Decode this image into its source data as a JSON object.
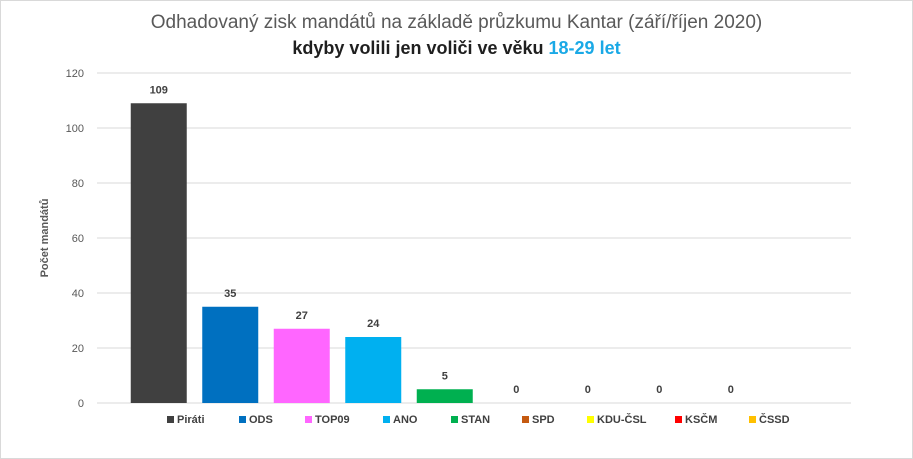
{
  "chart_data": {
    "type": "bar",
    "title": "Odhadovaný zisk mandátů na základě průzkumu Kantar (září/říjen  2020)",
    "subtitle_main": "kdyby volili jen voliči ve věku ",
    "subtitle_highlight": "18-29 let",
    "ylabel": "Počet mandátů",
    "xlabel": "",
    "ylim": [
      0,
      120
    ],
    "yticks": [
      0,
      20,
      40,
      60,
      80,
      100,
      120
    ],
    "grid": true,
    "legend": "bottom",
    "categories": [
      "Piráti",
      "ODS",
      "TOP09",
      "ANO",
      "STAN",
      "SPD",
      "KDU-ČSL",
      "KSČM",
      "ČSSD"
    ],
    "values": [
      109,
      35,
      27,
      24,
      5,
      0,
      0,
      0,
      0
    ],
    "colors": [
      "#404040",
      "#0070c0",
      "#ff66ff",
      "#00b0f0",
      "#00b050",
      "#c55a11",
      "#ffff00",
      "#ff0000",
      "#ffc000"
    ]
  }
}
